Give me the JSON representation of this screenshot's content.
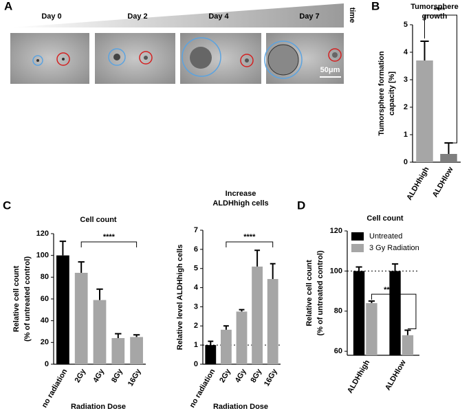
{
  "panels": [
    "A",
    "B",
    "C",
    "D"
  ],
  "images": {
    "days": [
      "Day 0",
      "Day 2",
      "Day 4",
      "Day 7"
    ],
    "axis_label": "time",
    "scale_bar": "50μm"
  },
  "chart_data": [
    {
      "type": "bar",
      "title": [
        "Tumorsphere",
        "growth"
      ],
      "ylabel": [
        "Tumorsphere formation",
        "capacity [%]"
      ],
      "categories": [
        "ALDHhigh",
        "ALDHlow"
      ],
      "values": [
        3.7,
        0.3
      ],
      "errors": [
        0.7,
        0.4
      ],
      "colors": [
        "#a6a6a6",
        "#7f7f7f"
      ],
      "ylim": [
        0,
        5
      ],
      "yticks": [
        0,
        1,
        2,
        3,
        4,
        5
      ],
      "annotation": "****"
    },
    {
      "type": "bar",
      "title": [
        "Cell count"
      ],
      "ylabel": [
        "Relative cell count",
        "(% of untreated control)"
      ],
      "xlabel": "Radiation Dose",
      "categories": [
        "no radiation",
        "2Gy",
        "4Gy",
        "8Gy",
        "16Gy"
      ],
      "values": [
        100,
        84,
        59,
        24,
        25
      ],
      "errors": [
        13,
        10,
        10,
        4,
        2
      ],
      "colors": [
        "#000000",
        "#a6a6a6",
        "#a6a6a6",
        "#a6a6a6",
        "#a6a6a6"
      ],
      "ylim": [
        0,
        120
      ],
      "yticks": [
        0,
        20,
        40,
        60,
        80,
        100,
        120
      ],
      "annotation": "****"
    },
    {
      "type": "bar",
      "title": [
        "Increase",
        "ALDHhigh cells"
      ],
      "ylabel": [
        "Relative level ALDHhigh cells"
      ],
      "xlabel": "Radiation Dose",
      "categories": [
        "no radiation",
        "2Gy",
        "4Gy",
        "8Gy",
        "16Gy"
      ],
      "values": [
        1.0,
        1.8,
        2.75,
        5.1,
        4.45
      ],
      "errors": [
        0.2,
        0.2,
        0.1,
        0.85,
        0.8
      ],
      "colors": [
        "#000000",
        "#a6a6a6",
        "#a6a6a6",
        "#a6a6a6",
        "#a6a6a6"
      ],
      "ylim": [
        0,
        7
      ],
      "yticks": [
        0,
        1,
        2,
        3,
        4,
        5,
        6,
        7
      ],
      "reference_line": 1,
      "annotation": "****"
    },
    {
      "type": "grouped_bar",
      "title": [
        "Cell count"
      ],
      "ylabel": [
        "Relative cell count",
        "(% of untreated control)"
      ],
      "categories": [
        "ALDHhigh",
        "ALDHlow"
      ],
      "series": [
        {
          "name": "Untreated",
          "color": "#000000",
          "values": [
            100,
            100
          ],
          "errors": [
            2,
            3.5
          ]
        },
        {
          "name": "3 Gy Radiation",
          "color": "#a6a6a6",
          "values": [
            84,
            68
          ],
          "errors": [
            1,
            2.5
          ]
        }
      ],
      "ylim": [
        58,
        120
      ],
      "yticks": [
        60,
        80,
        100,
        120
      ],
      "reference_line": 100,
      "annotation": "****"
    }
  ]
}
